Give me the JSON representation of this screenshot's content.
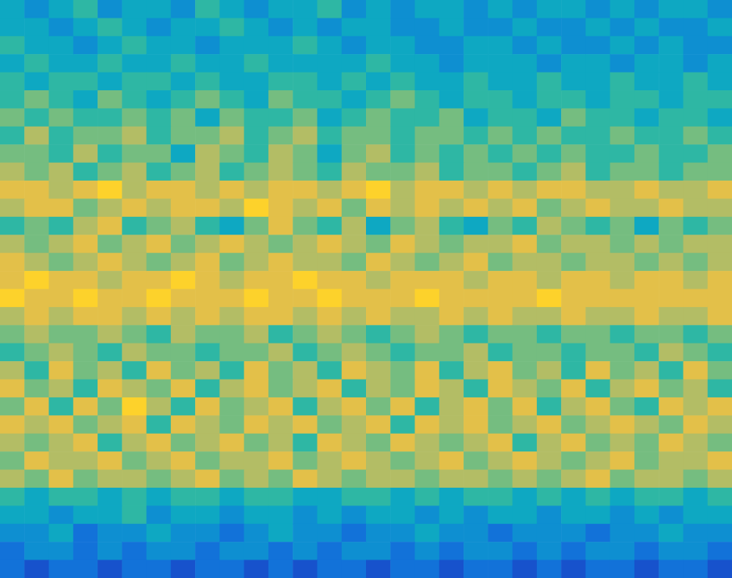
{
  "chart_data": {
    "type": "heatmap",
    "tick_labels": false,
    "xlim": [
      0,
      30
    ],
    "ylim": [
      0,
      32
    ],
    "zlim": [
      0,
      10
    ],
    "cells": [
      [
        4,
        3,
        4,
        5,
        3,
        4,
        4,
        3,
        5,
        4,
        3,
        4,
        4,
        5,
        3,
        4,
        3,
        4,
        4,
        3,
        4,
        3,
        4,
        4,
        3,
        4,
        3,
        4,
        4,
        3
      ],
      [
        4,
        4,
        3,
        4,
        5,
        4,
        3,
        4,
        4,
        5,
        4,
        3,
        4,
        3,
        4,
        4,
        3,
        3,
        4,
        3,
        3,
        4,
        3,
        3,
        4,
        3,
        4,
        3,
        3,
        4
      ],
      [
        5,
        4,
        4,
        3,
        4,
        5,
        4,
        4,
        3,
        4,
        4,
        4,
        5,
        4,
        3,
        4,
        4,
        3,
        3,
        4,
        4,
        3,
        4,
        3,
        3,
        4,
        3,
        4,
        3,
        3
      ],
      [
        4,
        5,
        4,
        4,
        5,
        4,
        4,
        5,
        4,
        4,
        5,
        4,
        4,
        4,
        4,
        5,
        4,
        4,
        3,
        4,
        4,
        4,
        3,
        4,
        4,
        3,
        4,
        4,
        3,
        4
      ],
      [
        5,
        4,
        5,
        5,
        4,
        5,
        5,
        4,
        5,
        4,
        4,
        5,
        5,
        4,
        5,
        4,
        5,
        4,
        4,
        5,
        4,
        4,
        5,
        4,
        4,
        5,
        4,
        4,
        5,
        4
      ],
      [
        5,
        6,
        5,
        4,
        6,
        5,
        4,
        5,
        6,
        5,
        4,
        6,
        5,
        5,
        4,
        5,
        6,
        5,
        4,
        5,
        5,
        4,
        5,
        5,
        4,
        5,
        5,
        4,
        5,
        5
      ],
      [
        6,
        5,
        6,
        5,
        5,
        6,
        5,
        6,
        4,
        6,
        5,
        5,
        6,
        4,
        5,
        6,
        5,
        5,
        6,
        4,
        5,
        5,
        4,
        6,
        5,
        5,
        4,
        5,
        5,
        4
      ],
      [
        5,
        7,
        5,
        6,
        6,
        7,
        5,
        6,
        6,
        7,
        5,
        6,
        7,
        5,
        6,
        6,
        5,
        6,
        6,
        5,
        6,
        5,
        6,
        5,
        5,
        6,
        5,
        5,
        6,
        5
      ],
      [
        6,
        6,
        5,
        7,
        5,
        6,
        6,
        4,
        7,
        6,
        5,
        7,
        6,
        4,
        6,
        7,
        5,
        6,
        5,
        6,
        5,
        6,
        5,
        6,
        5,
        5,
        6,
        5,
        5,
        6
      ],
      [
        7,
        6,
        7,
        5,
        6,
        7,
        5,
        6,
        7,
        5,
        6,
        7,
        6,
        5,
        7,
        6,
        6,
        7,
        5,
        6,
        6,
        5,
        6,
        7,
        5,
        6,
        6,
        5,
        6,
        6
      ],
      [
        8,
        8,
        7,
        8,
        9,
        7,
        8,
        8,
        7,
        8,
        7,
        8,
        8,
        7,
        8,
        9,
        7,
        8,
        8,
        7,
        8,
        7,
        8,
        8,
        7,
        7,
        8,
        7,
        7,
        8
      ],
      [
        7,
        8,
        8,
        6,
        7,
        8,
        7,
        8,
        8,
        7,
        9,
        8,
        7,
        8,
        6,
        8,
        7,
        8,
        7,
        8,
        7,
        8,
        6,
        7,
        8,
        7,
        7,
        8,
        7,
        7
      ],
      [
        5,
        6,
        5,
        7,
        8,
        5,
        6,
        7,
        5,
        4,
        6,
        8,
        6,
        5,
        7,
        4,
        6,
        7,
        5,
        4,
        6,
        5,
        7,
        6,
        5,
        6,
        4,
        6,
        5,
        6
      ],
      [
        7,
        6,
        7,
        8,
        6,
        7,
        8,
        6,
        7,
        8,
        7,
        6,
        7,
        8,
        7,
        6,
        8,
        7,
        6,
        7,
        7,
        8,
        6,
        7,
        7,
        6,
        7,
        6,
        7,
        7
      ],
      [
        8,
        7,
        6,
        7,
        8,
        7,
        6,
        7,
        8,
        6,
        7,
        8,
        7,
        7,
        6,
        8,
        7,
        6,
        7,
        8,
        6,
        7,
        7,
        6,
        7,
        7,
        6,
        7,
        6,
        7
      ],
      [
        8,
        9,
        8,
        8,
        7,
        8,
        8,
        9,
        8,
        7,
        8,
        8,
        9,
        8,
        8,
        7,
        8,
        8,
        8,
        7,
        8,
        8,
        7,
        8,
        8,
        7,
        8,
        8,
        7,
        8
      ],
      [
        9,
        8,
        8,
        9,
        8,
        8,
        9,
        8,
        8,
        8,
        9,
        8,
        8,
        9,
        8,
        8,
        8,
        9,
        8,
        8,
        8,
        8,
        9,
        8,
        8,
        8,
        8,
        8,
        8,
        8
      ],
      [
        7,
        8,
        7,
        8,
        8,
        7,
        8,
        7,
        8,
        7,
        8,
        8,
        7,
        8,
        7,
        8,
        7,
        7,
        8,
        7,
        8,
        7,
        7,
        8,
        7,
        7,
        8,
        7,
        7,
        8
      ],
      [
        6,
        7,
        6,
        6,
        7,
        6,
        5,
        7,
        6,
        6,
        7,
        5,
        6,
        7,
        6,
        5,
        6,
        7,
        6,
        5,
        6,
        6,
        5,
        6,
        6,
        5,
        6,
        6,
        5,
        6
      ],
      [
        5,
        6,
        7,
        6,
        5,
        7,
        6,
        6,
        5,
        6,
        6,
        7,
        5,
        6,
        7,
        6,
        5,
        6,
        6,
        7,
        5,
        6,
        6,
        5,
        6,
        6,
        5,
        7,
        6,
        5
      ],
      [
        7,
        5,
        8,
        6,
        7,
        5,
        8,
        6,
        7,
        5,
        8,
        6,
        7,
        5,
        8,
        7,
        6,
        8,
        5,
        7,
        8,
        6,
        7,
        5,
        8,
        6,
        7,
        5,
        8,
        6
      ],
      [
        8,
        6,
        7,
        5,
        8,
        7,
        6,
        8,
        5,
        7,
        8,
        6,
        7,
        8,
        5,
        7,
        6,
        8,
        7,
        5,
        8,
        7,
        6,
        8,
        5,
        7,
        8,
        6,
        7,
        5
      ],
      [
        6,
        8,
        5,
        8,
        6,
        9,
        7,
        5,
        8,
        6,
        7,
        8,
        5,
        7,
        8,
        6,
        8,
        5,
        7,
        8,
        6,
        8,
        5,
        7,
        8,
        6,
        5,
        8,
        7,
        8
      ],
      [
        8,
        7,
        8,
        6,
        7,
        8,
        5,
        8,
        7,
        6,
        8,
        7,
        8,
        6,
        7,
        8,
        5,
        8,
        7,
        8,
        6,
        7,
        8,
        6,
        7,
        8,
        7,
        6,
        8,
        7
      ],
      [
        7,
        6,
        7,
        8,
        5,
        7,
        8,
        6,
        7,
        8,
        6,
        7,
        5,
        8,
        7,
        6,
        8,
        7,
        6,
        7,
        8,
        5,
        7,
        8,
        6,
        7,
        6,
        8,
        7,
        6
      ],
      [
        6,
        8,
        7,
        7,
        8,
        6,
        7,
        8,
        6,
        7,
        7,
        8,
        6,
        7,
        8,
        7,
        6,
        7,
        8,
        6,
        7,
        8,
        7,
        6,
        7,
        8,
        6,
        7,
        7,
        8
      ],
      [
        7,
        6,
        8,
        6,
        7,
        7,
        6,
        7,
        8,
        6,
        7,
        6,
        8,
        7,
        6,
        7,
        7,
        6,
        7,
        7,
        6,
        7,
        6,
        7,
        8,
        6,
        7,
        7,
        6,
        7
      ],
      [
        5,
        4,
        5,
        5,
        4,
        5,
        4,
        5,
        5,
        4,
        5,
        5,
        4,
        4,
        5,
        5,
        4,
        5,
        4,
        5,
        5,
        4,
        5,
        4,
        5,
        4,
        5,
        5,
        4,
        5
      ],
      [
        4,
        4,
        3,
        4,
        4,
        5,
        3,
        4,
        4,
        3,
        4,
        4,
        3,
        4,
        3,
        4,
        4,
        3,
        4,
        3,
        4,
        4,
        3,
        4,
        4,
        3,
        4,
        3,
        4,
        4
      ],
      [
        3,
        3,
        4,
        2,
        3,
        3,
        4,
        3,
        3,
        2,
        3,
        4,
        3,
        3,
        2,
        3,
        3,
        4,
        3,
        3,
        2,
        3,
        3,
        3,
        2,
        3,
        3,
        4,
        3,
        3
      ],
      [
        2,
        3,
        3,
        2,
        3,
        2,
        3,
        3,
        2,
        3,
        3,
        2,
        3,
        2,
        3,
        3,
        2,
        3,
        2,
        3,
        3,
        2,
        3,
        2,
        3,
        3,
        2,
        3,
        3,
        2
      ],
      [
        2,
        1,
        2,
        2,
        1,
        2,
        2,
        1,
        2,
        2,
        1,
        2,
        1,
        2,
        2,
        1,
        2,
        2,
        1,
        2,
        2,
        1,
        2,
        1,
        2,
        2,
        1,
        2,
        2,
        1
      ]
    ]
  }
}
